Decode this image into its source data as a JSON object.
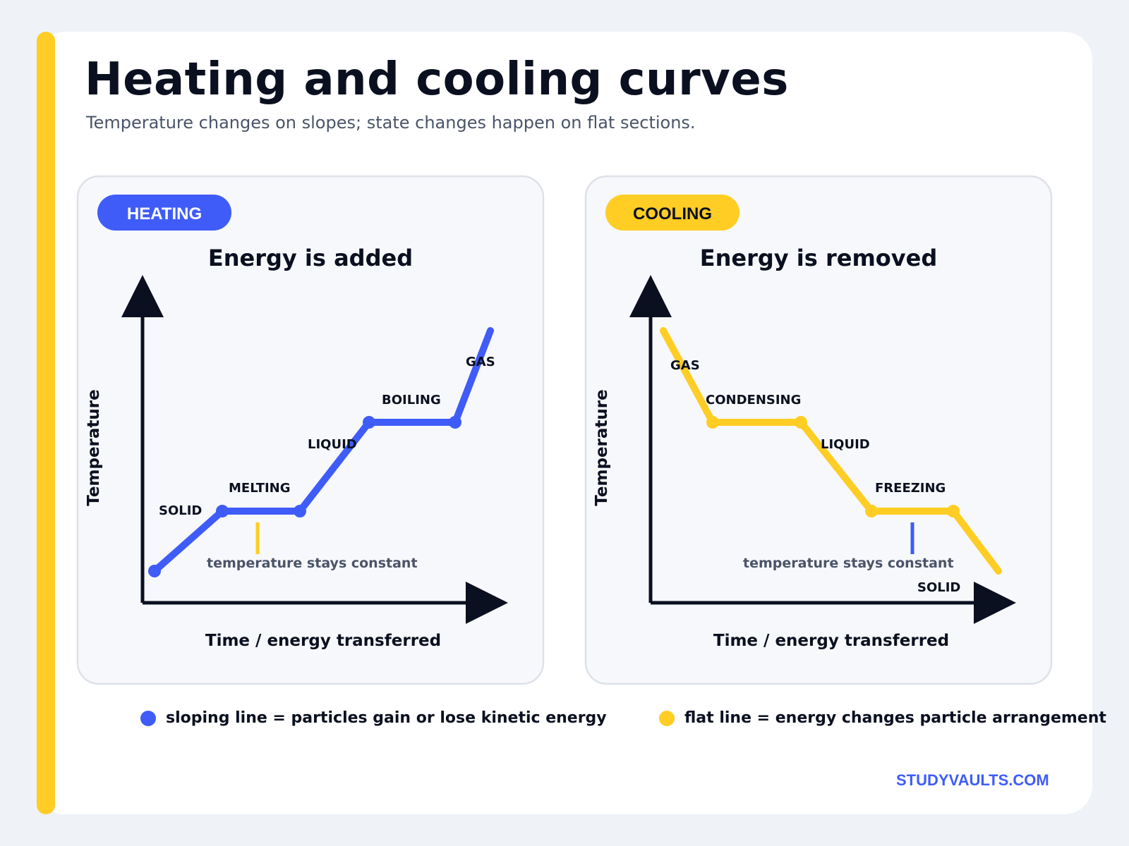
{
  "header": {
    "title": "Heating and cooling curves",
    "subtitle": "Temperature changes on slopes; state changes happen on flat sections."
  },
  "colors": {
    "heating": "#3f5cf9",
    "cooling": "#ffcd24",
    "ink": "#0b1020",
    "muted": "#4a5468"
  },
  "panels": [
    {
      "id": "heating",
      "badge": "HEATING",
      "heading": "Energy is added",
      "y_axis_label": "Temperature",
      "x_axis_label": "Time / energy transferred",
      "line_color": "#3f5cf9",
      "marker_color": "#ffcd24",
      "note": "temperature stays constant",
      "phases": [
        {
          "label": "SOLID",
          "kind": "slope"
        },
        {
          "label": "MELTING",
          "kind": "flat"
        },
        {
          "label": "LIQUID",
          "kind": "slope"
        },
        {
          "label": "BOILING",
          "kind": "flat"
        },
        {
          "label": "GAS",
          "kind": "slope"
        }
      ]
    },
    {
      "id": "cooling",
      "badge": "COOLING",
      "heading": "Energy is removed",
      "y_axis_label": "Temperature",
      "x_axis_label": "Time / energy transferred",
      "line_color": "#ffcd24",
      "marker_color": "#3f5cf9",
      "note": "temperature stays constant",
      "phases": [
        {
          "label": "GAS",
          "kind": "slope"
        },
        {
          "label": "CONDENSING",
          "kind": "flat"
        },
        {
          "label": "LIQUID",
          "kind": "slope"
        },
        {
          "label": "FREEZING",
          "kind": "flat"
        },
        {
          "label": "SOLID",
          "kind": "slope"
        }
      ]
    }
  ],
  "legend": [
    {
      "label": "sloping line = particles gain or lose kinetic energy",
      "color": "#3f5cf9"
    },
    {
      "label": "flat line = energy changes particle arrangement",
      "color": "#ffcd24"
    }
  ],
  "footer": {
    "brand": "STUDYVAULTS.COM"
  }
}
